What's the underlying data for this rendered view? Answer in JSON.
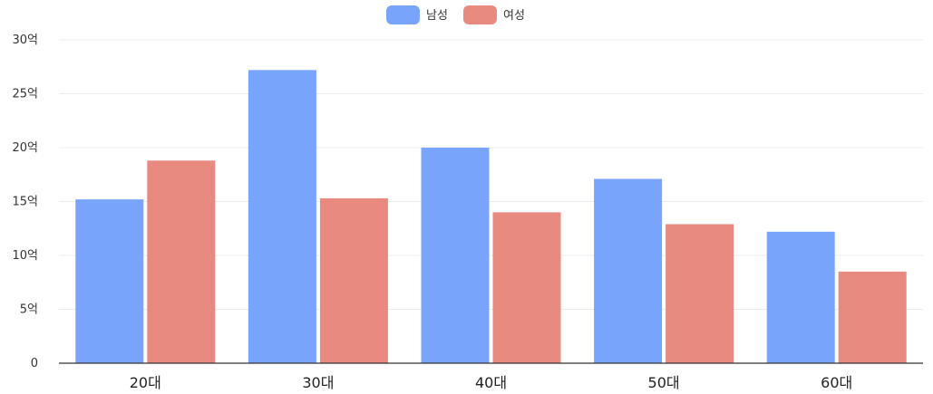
{
  "chart_data": {
    "type": "bar",
    "categories": [
      "20대",
      "30대",
      "40대",
      "50대",
      "60대"
    ],
    "series": [
      {
        "name": "남성",
        "color": "#78a5fb",
        "values": [
          15.2,
          27.2,
          20.0,
          17.1,
          12.2
        ]
      },
      {
        "name": "여성",
        "color": "#e98a80",
        "values": [
          18.8,
          15.3,
          14.0,
          12.9,
          8.5
        ]
      }
    ],
    "yticks": [
      "0",
      "5억",
      "10억",
      "15억",
      "20억",
      "25억",
      "30억"
    ],
    "ylim": [
      0,
      30
    ],
    "legend_position": "top-center",
    "grid": true
  }
}
